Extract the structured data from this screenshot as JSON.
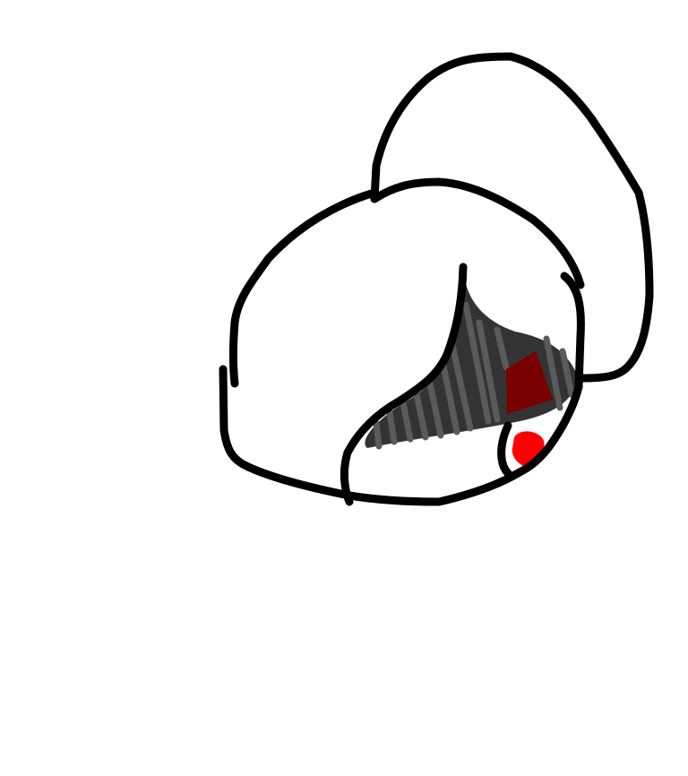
{
  "drawing": {
    "background_color": "#ffffff",
    "colors": {
      "outline": "#000000",
      "dark_fill": "#333333",
      "stripes": "#5a5a5a",
      "dark_red": "#7a0000",
      "red": "#ff0000"
    }
  }
}
